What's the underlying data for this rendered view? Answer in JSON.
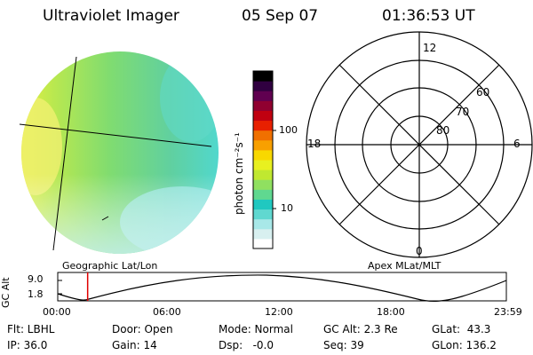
{
  "header": {
    "title": "Ultraviolet Imager",
    "date": "05 Sep 07",
    "time": "01:36:53 UT"
  },
  "left_panel": {
    "caption": "Geographic Lat/Lon"
  },
  "colorbar": {
    "unit_label": "photon cm⁻²s⁻¹",
    "ticks": [
      "100",
      "10"
    ],
    "colors": [
      "#ffffff",
      "#d8f0f0",
      "#a8e8e8",
      "#60d8d0",
      "#20c8c0",
      "#60d890",
      "#90e060",
      "#c0e830",
      "#e8f020",
      "#f8d800",
      "#f8a000",
      "#f07000",
      "#e82000",
      "#c00010",
      "#900030",
      "#600050",
      "#300040",
      "#000000"
    ]
  },
  "polar_panel": {
    "caption": "Apex MLat/MLT",
    "mlt_labels": {
      "top": "12",
      "left": "18",
      "right": "6",
      "bottom": "0"
    },
    "lat_labels": [
      "60",
      "70",
      "80"
    ]
  },
  "timeline": {
    "ylabel": "GC Alt",
    "yticks": [
      "9.0",
      "1.8"
    ],
    "xticks": [
      "00:00",
      "06:00",
      "12:00",
      "18:00",
      "23:59"
    ],
    "marker_time_hours": 1.6
  },
  "footer": {
    "flt": "Flt: LBHL",
    "ip": "IP: 36.0",
    "door": "Door: Open",
    "gain": "Gain: 14",
    "mode": "Mode: Normal",
    "dsp": "Dsp:   -0.0",
    "gcalt": "GC Alt: 2.3 Re",
    "seq": "Seq: 39",
    "glat": "GLat:  43.3",
    "glon": "GLon: 136.2"
  }
}
